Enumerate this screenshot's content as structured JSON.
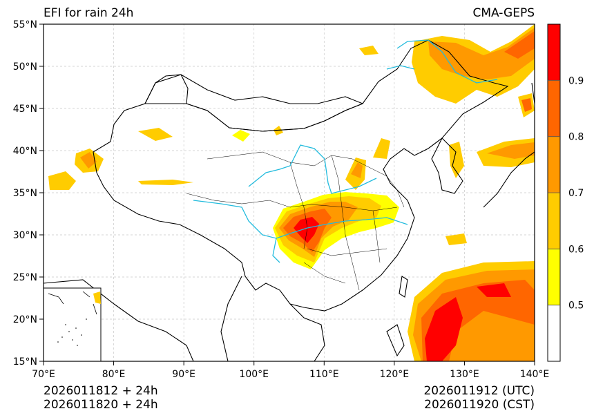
{
  "title_left": "EFI for rain 24h",
  "title_right": "CMA-GEPS",
  "lat_ticks": [
    {
      "value": 55,
      "label": "55°N"
    },
    {
      "value": 50,
      "label": "50°N"
    },
    {
      "value": 45,
      "label": "45°N"
    },
    {
      "value": 40,
      "label": "40°N"
    },
    {
      "value": 35,
      "label": "35°N"
    },
    {
      "value": 30,
      "label": "30°N"
    },
    {
      "value": 25,
      "label": "25°N"
    },
    {
      "value": 20,
      "label": "20°N"
    },
    {
      "value": 15,
      "label": "15°N"
    }
  ],
  "lon_ticks": [
    {
      "value": 70,
      "label": "70°E"
    },
    {
      "value": 80,
      "label": "80°E"
    },
    {
      "value": 90,
      "label": "90°E"
    },
    {
      "value": 100,
      "label": "100°E"
    },
    {
      "value": 110,
      "label": "110°E"
    },
    {
      "value": 120,
      "label": "120°E"
    },
    {
      "value": 130,
      "label": "130°E"
    },
    {
      "value": 140,
      "label": "140°E"
    }
  ],
  "extent": {
    "lon": [
      70,
      140
    ],
    "lat": [
      15,
      55
    ]
  },
  "colorbar": {
    "levels": [
      0.5,
      0.6,
      0.7,
      0.8,
      0.9
    ],
    "labels": [
      "0.5",
      "0.6",
      "0.7",
      "0.8",
      "0.9"
    ],
    "colors": [
      "#ffffff",
      "#ffff00",
      "#ffcc00",
      "#ff9900",
      "#ff6600",
      "#ff0000"
    ]
  },
  "footer": {
    "init_utc": "2026011812 + 24h",
    "init_cst": "2026011820 + 24h",
    "valid_utc": "2026011912 (UTC)",
    "valid_cst": "2026011920 (CST)"
  },
  "colors": {
    "river": "#22bbdd",
    "border": "#000000",
    "grid": "#c8c8c8"
  }
}
